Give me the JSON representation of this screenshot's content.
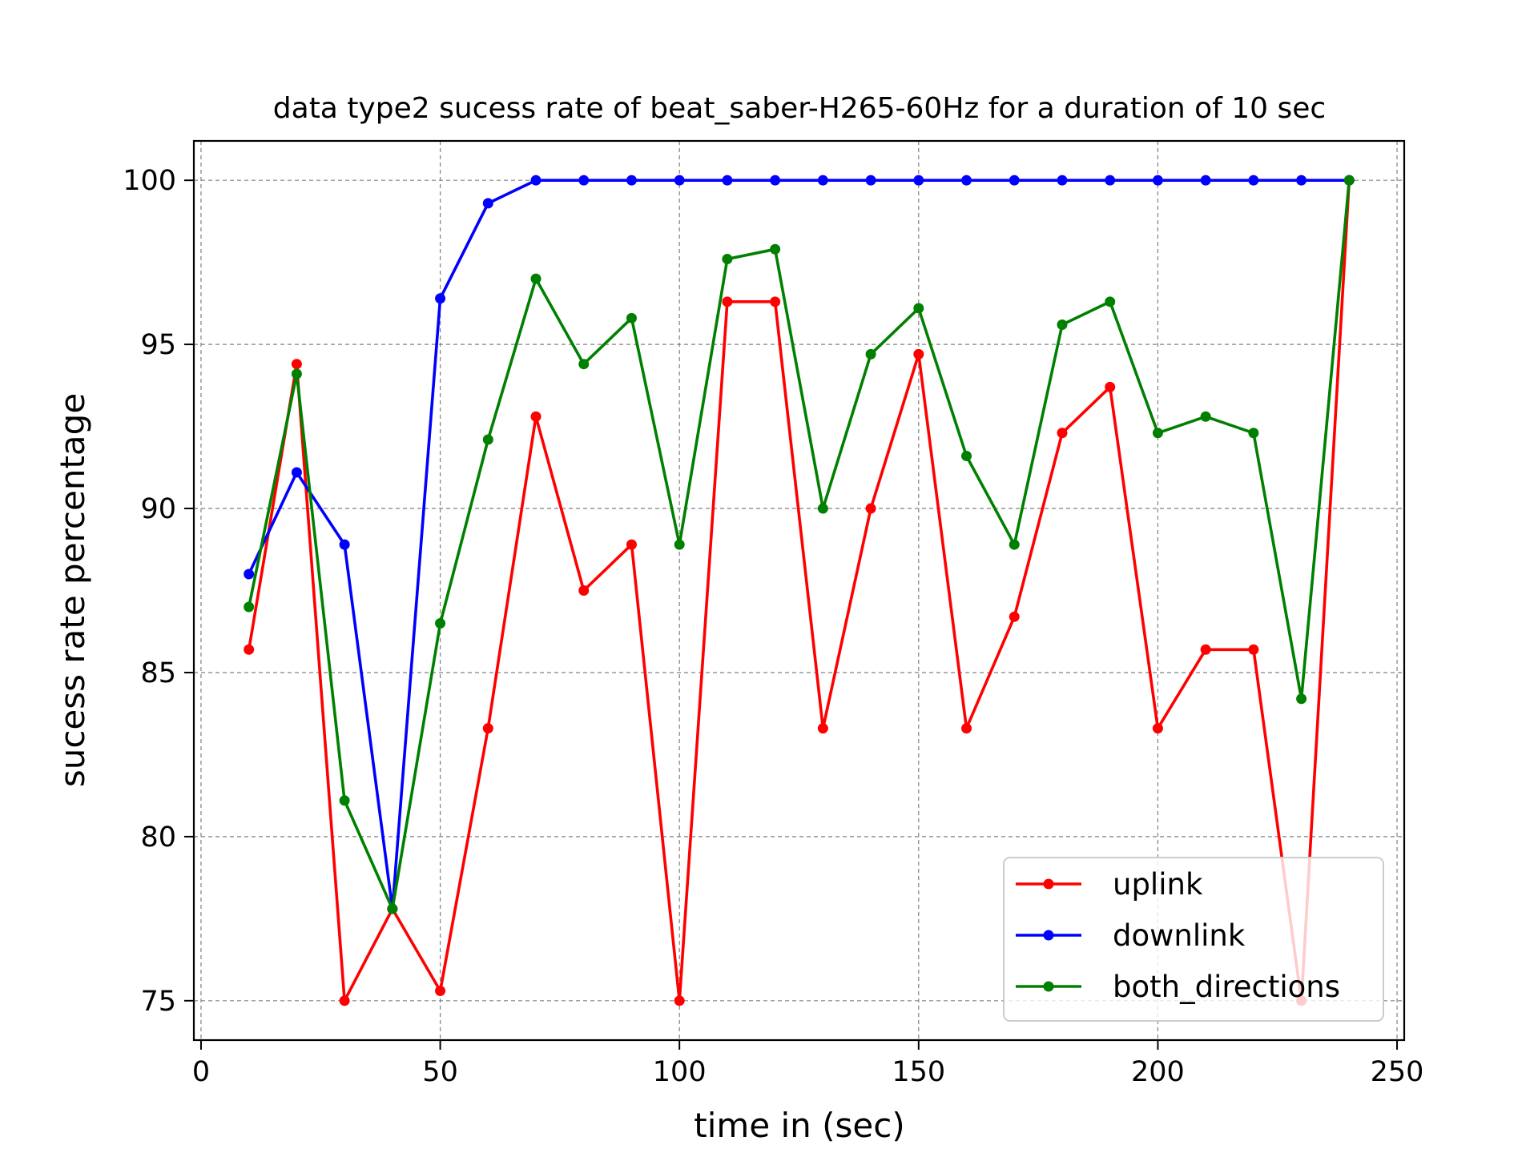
{
  "chart_data": {
    "type": "line",
    "title": "data type2 sucess rate of beat_saber-H265-60Hz for a duration of 10 sec",
    "xlabel": "time in (sec)",
    "ylabel": "sucess rate percentage",
    "xlim": [
      -1.5,
      251.5
    ],
    "ylim": [
      73.8,
      101.2
    ],
    "xticks": [
      0,
      50,
      100,
      150,
      200,
      250
    ],
    "yticks": [
      75,
      80,
      85,
      90,
      95,
      100
    ],
    "grid": true,
    "legend_position": "lower-right",
    "x": [
      10,
      20,
      30,
      40,
      50,
      60,
      70,
      80,
      90,
      100,
      110,
      120,
      130,
      140,
      150,
      160,
      170,
      180,
      190,
      200,
      210,
      220,
      230,
      240
    ],
    "series": [
      {
        "name": "uplink",
        "color": "#ff0000",
        "values": [
          85.7,
          94.4,
          75.0,
          77.8,
          75.3,
          83.3,
          92.8,
          87.5,
          88.9,
          75.0,
          96.3,
          96.3,
          83.3,
          90.0,
          94.7,
          83.3,
          86.7,
          92.3,
          93.7,
          83.3,
          85.7,
          85.7,
          75.0,
          100.0
        ]
      },
      {
        "name": "downlink",
        "color": "#0000ff",
        "values": [
          88.0,
          91.1,
          88.9,
          77.8,
          96.4,
          99.3,
          100.0,
          100.0,
          100.0,
          100.0,
          100.0,
          100.0,
          100.0,
          100.0,
          100.0,
          100.0,
          100.0,
          100.0,
          100.0,
          100.0,
          100.0,
          100.0,
          100.0,
          100.0
        ]
      },
      {
        "name": "both_directions",
        "color": "#008000",
        "values": [
          87.0,
          94.1,
          81.1,
          77.8,
          86.5,
          92.1,
          97.0,
          94.4,
          95.8,
          88.9,
          97.6,
          97.9,
          90.0,
          94.7,
          96.1,
          91.6,
          88.9,
          95.6,
          96.3,
          92.3,
          92.8,
          92.3,
          84.2,
          100.0
        ]
      }
    ]
  }
}
